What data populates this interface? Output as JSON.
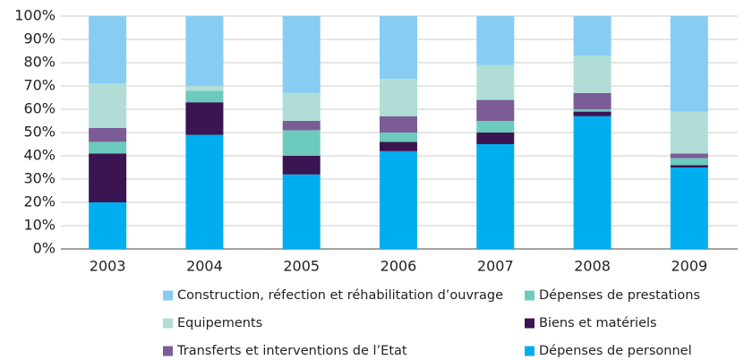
{
  "chart_data": {
    "type": "stacked_bar",
    "categories": [
      "2003",
      "2004",
      "2005",
      "2006",
      "2007",
      "2008",
      "2009"
    ],
    "series": [
      {
        "name": "Dépenses de personnel",
        "color": "#00aeef",
        "values": [
          20,
          49,
          32,
          42,
          45,
          57,
          35
        ]
      },
      {
        "name": "Biens et matériels",
        "color": "#3b1552",
        "values": [
          21,
          14,
          8,
          4,
          5,
          2,
          1
        ]
      },
      {
        "name": "Dépenses de prestations",
        "color": "#6ccbbd",
        "values": [
          5,
          5,
          11,
          4,
          5,
          1,
          3
        ]
      },
      {
        "name": "Transferts et interventions de l’Etat",
        "color": "#7b5c97",
        "values": [
          6,
          0,
          4,
          7,
          9,
          7,
          2
        ]
      },
      {
        "name": "Equipements",
        "color": "#b0ded6",
        "values": [
          19,
          2,
          12,
          16,
          15,
          16,
          18
        ]
      },
      {
        "name": "Construction, réfection et réhabilitation d’ouvrage",
        "color": "#87cdf3",
        "values": [
          29,
          30,
          33,
          27,
          21,
          17,
          41
        ]
      }
    ],
    "ylim": [
      0,
      100
    ],
    "yticks": [
      {
        "value": 0,
        "label": "0%"
      },
      {
        "value": 10,
        "label": "10%"
      },
      {
        "value": 20,
        "label": "20%"
      },
      {
        "value": 30,
        "label": "30%"
      },
      {
        "value": 40,
        "label": "40%"
      },
      {
        "value": 50,
        "label": "50%"
      },
      {
        "value": 60,
        "label": "60%"
      },
      {
        "value": 70,
        "label": "70%"
      },
      {
        "value": 80,
        "label": "80%"
      },
      {
        "value": 90,
        "label": "90%"
      },
      {
        "value": 100,
        "label": "100%"
      }
    ],
    "grid": true
  }
}
